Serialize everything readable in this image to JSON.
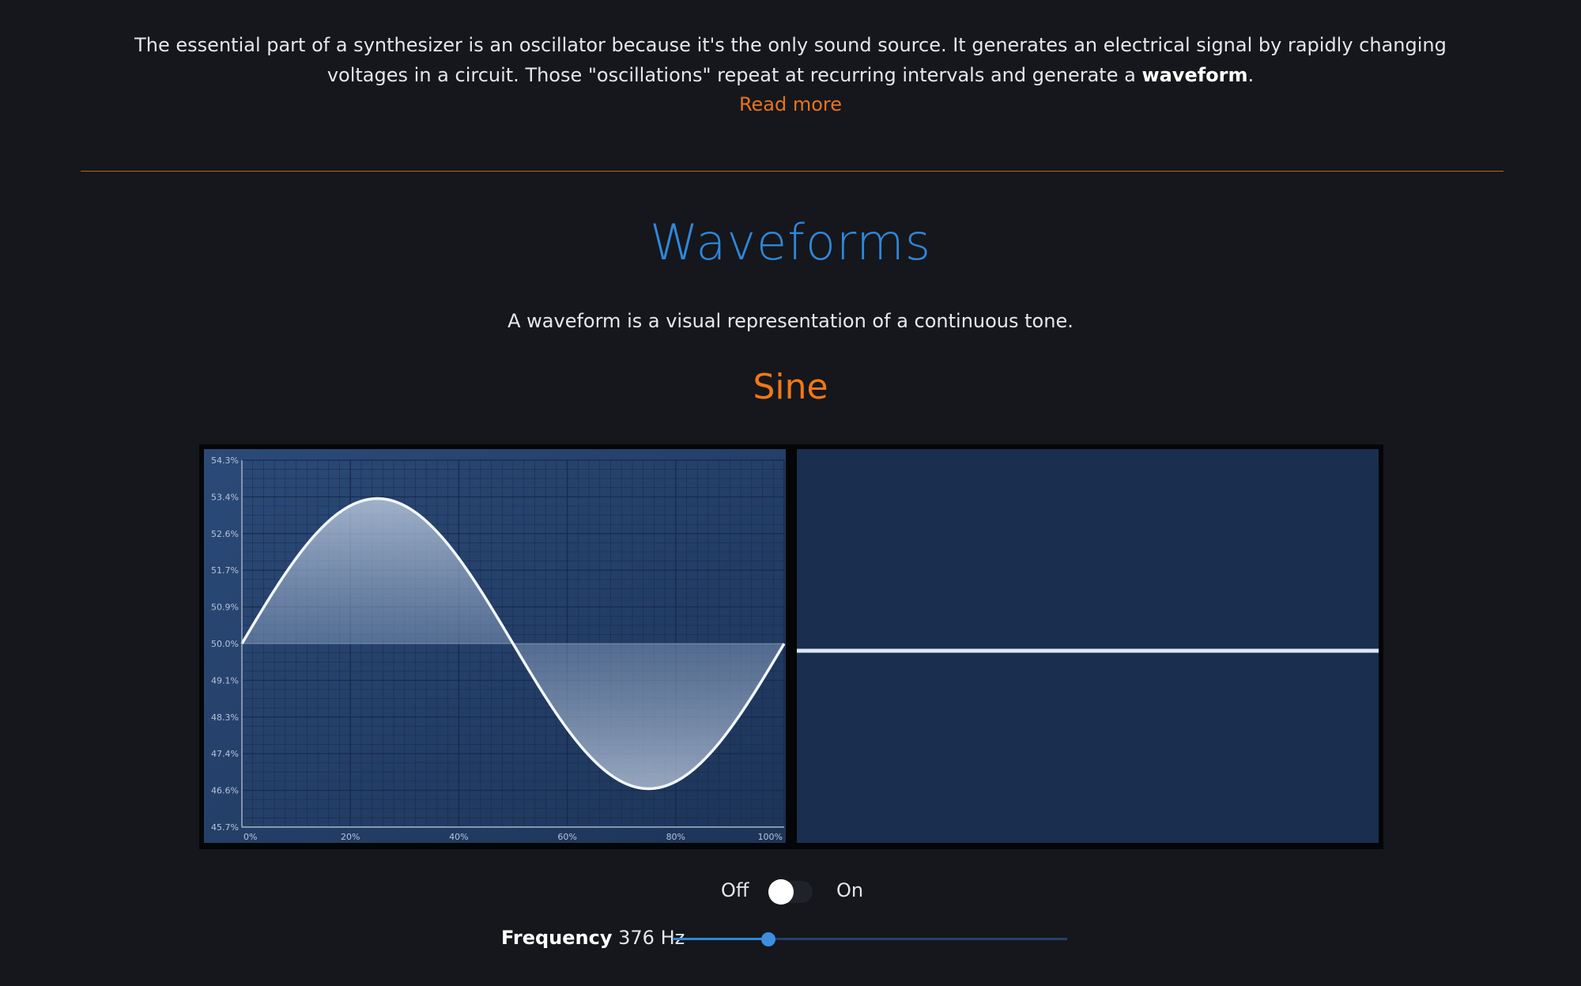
{
  "intro": {
    "text_before_bold": "The essential part of a synthesizer is an oscillator because it's the only sound source. It generates an electrical signal by rapidly changing voltages in a circuit. Those \"oscillations\" repeat at recurring intervals and generate a ",
    "bold_word": "waveform",
    "text_after_bold": ".",
    "read_more": "Read more"
  },
  "section": {
    "title": "Waveforms",
    "description": "A waveform is a visual representation of a continuous tone.",
    "waveform_name": "Sine"
  },
  "chart_data": {
    "type": "area",
    "title": "",
    "xlabel": "",
    "ylabel": "",
    "x_ticks": [
      "0%",
      "20%",
      "40%",
      "60%",
      "80%",
      "100%"
    ],
    "y_ticks": [
      "54.3%",
      "53.4%",
      "52.6%",
      "51.7%",
      "50.9%",
      "50.0%",
      "49.1%",
      "48.3%",
      "47.4%",
      "46.6%",
      "45.7%"
    ],
    "xlim": [
      0,
      100
    ],
    "ylim": [
      45.7,
      54.3
    ],
    "baseline": 50.0,
    "series": [
      {
        "x": [
          0,
          5,
          10,
          15,
          20,
          25,
          30,
          35,
          40,
          45,
          50,
          55,
          60,
          65,
          70,
          75,
          80,
          85,
          90,
          95,
          100
        ],
        "values": [
          50.0,
          51.05,
          52.0,
          52.76,
          53.24,
          53.4,
          53.24,
          52.76,
          52.0,
          51.05,
          50.0,
          48.95,
          48.0,
          47.24,
          46.76,
          46.6,
          46.76,
          47.24,
          48.0,
          48.95,
          50.0
        ]
      }
    ],
    "grid": true
  },
  "scope": {
    "level": 0.5
  },
  "controls": {
    "off_label": "Off",
    "on_label": "On",
    "power_on": false,
    "frequency_label": "Frequency",
    "frequency_value": "376 Hz",
    "frequency_fraction": 0.24
  },
  "colors": {
    "accent_blue": "#2f87d9",
    "accent_orange": "#f27716",
    "background": "#15171c"
  }
}
